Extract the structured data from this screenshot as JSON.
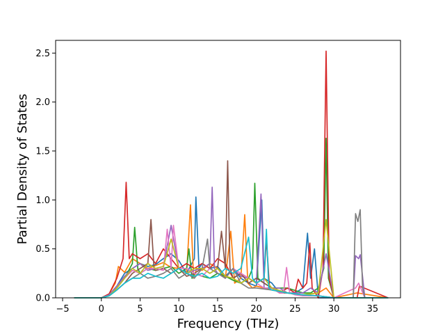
{
  "chart_data": {
    "type": "line",
    "title": "",
    "xlabel": "Frequency (THz)",
    "ylabel": "Partial Density of States",
    "xlim": [
      -5.9,
      38.6
    ],
    "ylim": [
      0,
      2.63
    ],
    "xticks": [
      -5,
      0,
      5,
      10,
      15,
      20,
      25,
      30,
      35
    ],
    "yticks": [
      0.0,
      0.5,
      1.0,
      1.5,
      2.0,
      2.5
    ],
    "xtick_labels": [
      "−5",
      "0",
      "5",
      "10",
      "15",
      "20",
      "25",
      "30",
      "35"
    ],
    "ytick_labels": [
      "0.0",
      "0.5",
      "1.0",
      "1.5",
      "2.0",
      "2.5"
    ],
    "grid": false,
    "legend": "none",
    "colors": [
      "#1f77b4",
      "#ff7f0e",
      "#2ca02c",
      "#d62728",
      "#9467bd",
      "#8c564b",
      "#e377c2",
      "#7f7f7f",
      "#bcbd22",
      "#17becf"
    ],
    "series": [
      {
        "color": "#1f77b4",
        "x": [
          -3.5,
          0,
          1,
          2,
          3,
          4,
          5,
          6,
          7,
          8,
          9,
          10,
          11,
          12,
          12.2,
          12.6,
          13,
          14,
          15,
          16,
          17,
          18,
          19,
          20,
          20.7,
          21,
          22,
          23,
          24,
          25,
          26,
          26.6,
          27,
          27.5,
          28,
          30,
          33,
          37
        ],
        "y": [
          0,
          0,
          0.03,
          0.12,
          0.25,
          0.3,
          0.35,
          0.32,
          0.34,
          0.4,
          0.45,
          0.38,
          0.25,
          0.4,
          1.03,
          0.3,
          0.35,
          0.3,
          0.32,
          0.22,
          0.3,
          0.2,
          0.15,
          0.12,
          1.0,
          0.2,
          0.15,
          0.05,
          0.1,
          0.05,
          0.1,
          0.66,
          0.2,
          0.5,
          0,
          0,
          0,
          0
        ]
      },
      {
        "color": "#ff7f0e",
        "x": [
          -3.5,
          0,
          1,
          1.8,
          2.2,
          3,
          4,
          5,
          6,
          7,
          8,
          9,
          10,
          11,
          11.5,
          11.9,
          12.3,
          13,
          14,
          15,
          16,
          16.7,
          17.2,
          18,
          18.5,
          18.9,
          19.5,
          20,
          22,
          24,
          26,
          28,
          29,
          30,
          33,
          37
        ],
        "y": [
          0,
          0,
          0.04,
          0.15,
          0.32,
          0.26,
          0.4,
          0.35,
          0.3,
          0.33,
          0.36,
          0.31,
          0.3,
          0.25,
          0.95,
          0.2,
          0.3,
          0.28,
          0.35,
          0.3,
          0.2,
          0.68,
          0.15,
          0.2,
          0.85,
          0.15,
          0.1,
          0.12,
          0.08,
          0.05,
          0.03,
          0.05,
          0.1,
          0,
          0.05,
          0
        ]
      },
      {
        "color": "#2ca02c",
        "x": [
          -3.5,
          0,
          1,
          2,
          3,
          4,
          4.3,
          4.7,
          5,
          6,
          7,
          8,
          9,
          10,
          11,
          11.3,
          11.7,
          12,
          13,
          14,
          15,
          16,
          17,
          18,
          19,
          19.5,
          19.8,
          20.2,
          21,
          22,
          24,
          26,
          27,
          28,
          28.7,
          29,
          29.3,
          30,
          33,
          37
        ],
        "y": [
          0,
          0,
          0.03,
          0.1,
          0.2,
          0.35,
          0.72,
          0.3,
          0.25,
          0.3,
          0.28,
          0.3,
          0.32,
          0.25,
          0.3,
          0.5,
          0.2,
          0.25,
          0.22,
          0.2,
          0.25,
          0.22,
          0.18,
          0.15,
          0.2,
          0.3,
          1.17,
          0.2,
          0.15,
          0.1,
          0.1,
          0.05,
          0.05,
          0.1,
          0.3,
          1.63,
          0.2,
          0,
          0,
          0
        ]
      },
      {
        "color": "#d62728",
        "x": [
          -3.5,
          0,
          1,
          2,
          2.8,
          3.2,
          3.6,
          4,
          5,
          6,
          7,
          8,
          9,
          10,
          11,
          12,
          13,
          14,
          15,
          16,
          17,
          18,
          19,
          20,
          21,
          21.3,
          21.7,
          22,
          23,
          24,
          25,
          25.4,
          26,
          26.5,
          26.9,
          27.2,
          28,
          28.6,
          29,
          29.4,
          30,
          33,
          33.3,
          37
        ],
        "y": [
          0,
          0,
          0.04,
          0.2,
          0.4,
          1.18,
          0.4,
          0.45,
          0.4,
          0.45,
          0.35,
          0.5,
          0.4,
          0.3,
          0.35,
          0.3,
          0.35,
          0.3,
          0.4,
          0.35,
          0.2,
          0.25,
          0.2,
          0.15,
          0.2,
          0.6,
          0.1,
          0.1,
          0.05,
          0.1,
          0.05,
          0.19,
          0.1,
          0.15,
          0.56,
          0.1,
          0,
          0.3,
          2.52,
          0.2,
          0,
          0,
          0.12,
          0
        ]
      },
      {
        "color": "#9467bd",
        "x": [
          -3.5,
          0,
          1,
          2,
          3,
          4,
          5,
          6,
          7,
          8,
          9,
          10,
          11,
          12,
          13,
          14,
          14.3,
          14.6,
          15,
          16,
          17,
          18,
          19,
          20,
          20.6,
          21,
          22,
          23,
          24,
          25,
          26,
          27,
          28,
          29,
          30,
          32.5,
          32.8,
          33.2,
          33.4,
          34,
          37
        ],
        "y": [
          0,
          0,
          0.03,
          0.12,
          0.22,
          0.3,
          0.35,
          0.28,
          0.3,
          0.32,
          0.74,
          0.3,
          0.25,
          0.28,
          0.3,
          0.35,
          1.13,
          0.3,
          0.25,
          0.2,
          0.3,
          0.22,
          0.2,
          0.15,
          1.06,
          0.1,
          0.1,
          0.1,
          0.05,
          0.05,
          0.05,
          0.1,
          0.05,
          0.45,
          0,
          0,
          0.43,
          0.4,
          0.44,
          0,
          0
        ]
      },
      {
        "color": "#8c564b",
        "x": [
          -3.5,
          0,
          1,
          2,
          3,
          4,
          5,
          6,
          6.4,
          6.8,
          7,
          8,
          9,
          10,
          11,
          12,
          13,
          14,
          15,
          15.5,
          16,
          16.3,
          16.6,
          17,
          18,
          19,
          20,
          21,
          22,
          23,
          24,
          26,
          28,
          30,
          33,
          37
        ],
        "y": [
          0,
          0,
          0.02,
          0.08,
          0.15,
          0.25,
          0.3,
          0.35,
          0.8,
          0.3,
          0.28,
          0.3,
          0.25,
          0.3,
          0.22,
          0.25,
          0.3,
          0.25,
          0.3,
          0.68,
          0.3,
          1.4,
          0.3,
          0.2,
          0.25,
          0.15,
          0.2,
          0.15,
          0.1,
          0.05,
          0.05,
          0.03,
          0.02,
          0,
          0,
          0
        ]
      },
      {
        "color": "#e377c2",
        "x": [
          -3.5,
          0,
          1,
          2,
          3,
          4,
          5,
          6,
          7,
          8,
          8.5,
          9,
          9.3,
          10,
          11,
          12,
          13,
          14,
          15,
          16,
          17,
          18,
          19,
          20,
          21,
          22,
          23,
          23.5,
          23.9,
          24.3,
          25,
          26,
          28,
          30,
          32.8,
          33.2,
          34,
          37
        ],
        "y": [
          0,
          0,
          0.02,
          0.1,
          0.2,
          0.28,
          0.25,
          0.3,
          0.3,
          0.28,
          0.7,
          0.3,
          0.74,
          0.3,
          0.3,
          0.25,
          0.22,
          0.3,
          0.25,
          0.2,
          0.3,
          0.25,
          0.2,
          0.15,
          0.1,
          0.1,
          0.05,
          0.05,
          0.31,
          0.05,
          0.03,
          0.02,
          0.02,
          0,
          0.1,
          0.15,
          0,
          0
        ]
      },
      {
        "color": "#7f7f7f",
        "x": [
          -3.5,
          0,
          1,
          2,
          3,
          4,
          5,
          6,
          7,
          8,
          9,
          10,
          11,
          12,
          13,
          13.7,
          14,
          15,
          16,
          17,
          18,
          19,
          20,
          22,
          24,
          26,
          28,
          30,
          32.5,
          32.8,
          33.1,
          33.4,
          33.7,
          34,
          37
        ],
        "y": [
          0,
          0,
          0.02,
          0.08,
          0.15,
          0.2,
          0.25,
          0.2,
          0.22,
          0.25,
          0.3,
          0.2,
          0.25,
          0.2,
          0.3,
          0.6,
          0.3,
          0.25,
          0.2,
          0.3,
          0.15,
          0.1,
          0.1,
          0.08,
          0.05,
          0.03,
          0.02,
          0,
          0,
          0.86,
          0.78,
          0.9,
          0.1,
          0,
          0
        ]
      },
      {
        "color": "#bcbd22",
        "x": [
          -3.5,
          0,
          1,
          2,
          3,
          4,
          5,
          6,
          7,
          8,
          9,
          10,
          11,
          12,
          13,
          14,
          15,
          16,
          17,
          18,
          19,
          20,
          21,
          22,
          24,
          26,
          28,
          29,
          30,
          33,
          37
        ],
        "y": [
          0,
          0,
          0.02,
          0.1,
          0.2,
          0.3,
          0.25,
          0.35,
          0.3,
          0.32,
          0.6,
          0.3,
          0.25,
          0.3,
          0.3,
          0.25,
          0.3,
          0.22,
          0.2,
          0.15,
          0.2,
          0.15,
          0.2,
          0.1,
          0.05,
          0.03,
          0.05,
          0.8,
          0,
          0,
          0
        ]
      },
      {
        "color": "#17becf",
        "x": [
          -3.5,
          0,
          1,
          2,
          3,
          4,
          5,
          6,
          7,
          8,
          9,
          10,
          11,
          12,
          13,
          14,
          15,
          16,
          17,
          18,
          19,
          19.5,
          20,
          21,
          21.3,
          21.6,
          22,
          24,
          26,
          28,
          30,
          33,
          37
        ],
        "y": [
          0,
          0,
          0.02,
          0.08,
          0.15,
          0.2,
          0.2,
          0.25,
          0.22,
          0.2,
          0.25,
          0.3,
          0.25,
          0.22,
          0.25,
          0.2,
          0.22,
          0.3,
          0.25,
          0.3,
          0.62,
          0.2,
          0.15,
          0.2,
          0.7,
          0.1,
          0.08,
          0.05,
          0.03,
          0.02,
          0,
          0,
          0
        ]
      }
    ]
  }
}
